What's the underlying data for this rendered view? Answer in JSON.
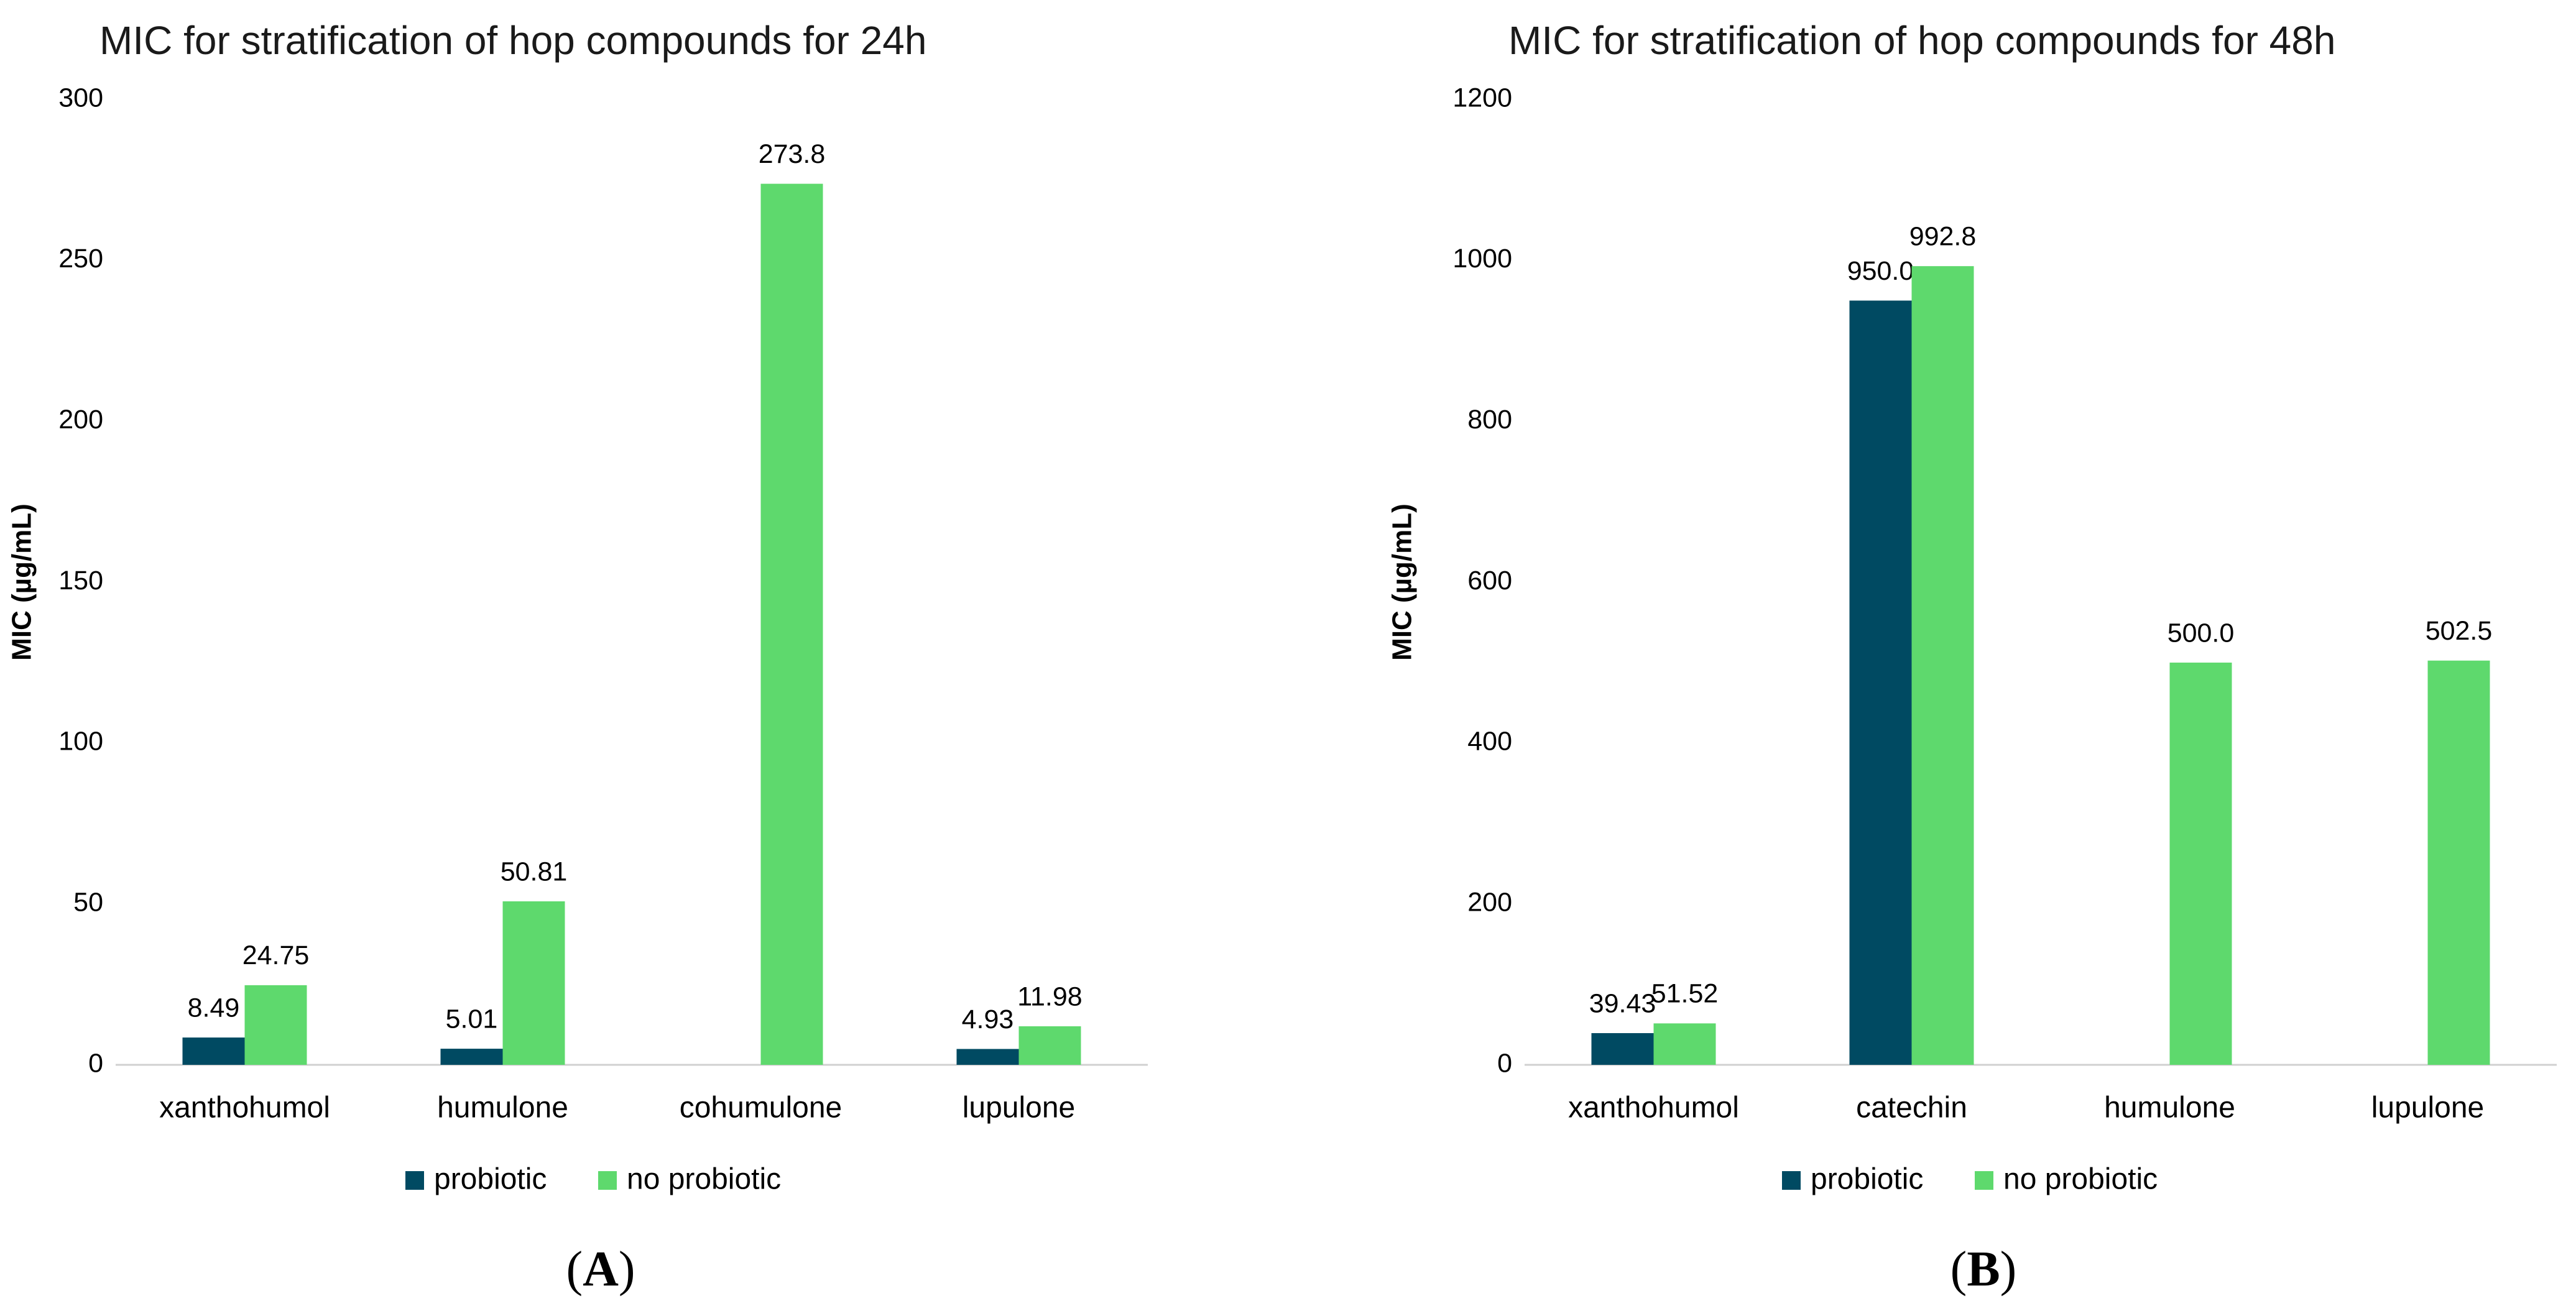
{
  "colors": {
    "probiotic": "#004a62",
    "no_probiotic": "#5ed96d",
    "axis": "#d0d0d0"
  },
  "chart_data": [
    {
      "type": "bar",
      "panel_label": "A",
      "title": "MIC for stratification of hop compounds for 24h",
      "ylabel": "MIC  (µg/mL)",
      "xlabel": "",
      "ylim": [
        0,
        300
      ],
      "yticks": [
        0,
        50,
        100,
        150,
        200,
        250,
        300
      ],
      "grid": false,
      "legend_position": "bottom",
      "categories": [
        "xanthohumol",
        "humulone",
        "cohumulone",
        "lupulone"
      ],
      "series": [
        {
          "name": "probiotic",
          "values": [
            8.49,
            5.01,
            null,
            4.93
          ],
          "labels": [
            "8.49",
            "5.01",
            null,
            "4.93"
          ]
        },
        {
          "name": "no probiotic",
          "values": [
            24.75,
            50.81,
            273.8,
            11.98
          ],
          "labels": [
            "24.75",
            "50.81",
            "273.8",
            "11.98"
          ]
        }
      ]
    },
    {
      "type": "bar",
      "panel_label": "B",
      "title": "MIC for stratification of hop compounds for 48h",
      "ylabel": "MIC  (µg/mL)",
      "xlabel": "",
      "ylim": [
        0,
        1200
      ],
      "yticks": [
        0,
        200,
        400,
        600,
        800,
        1000,
        1200
      ],
      "grid": false,
      "legend_position": "bottom",
      "categories": [
        "xanthohumol",
        "catechin",
        "humulone",
        "lupulone"
      ],
      "series": [
        {
          "name": "probiotic",
          "values": [
            39.43,
            950.0,
            null,
            null
          ],
          "labels": [
            "39.43",
            "950.0",
            null,
            null
          ]
        },
        {
          "name": "no probiotic",
          "values": [
            51.52,
            992.8,
            500.0,
            502.5
          ],
          "labels": [
            "51.52",
            "992.8",
            "500.0",
            "502.5"
          ]
        }
      ]
    }
  ]
}
